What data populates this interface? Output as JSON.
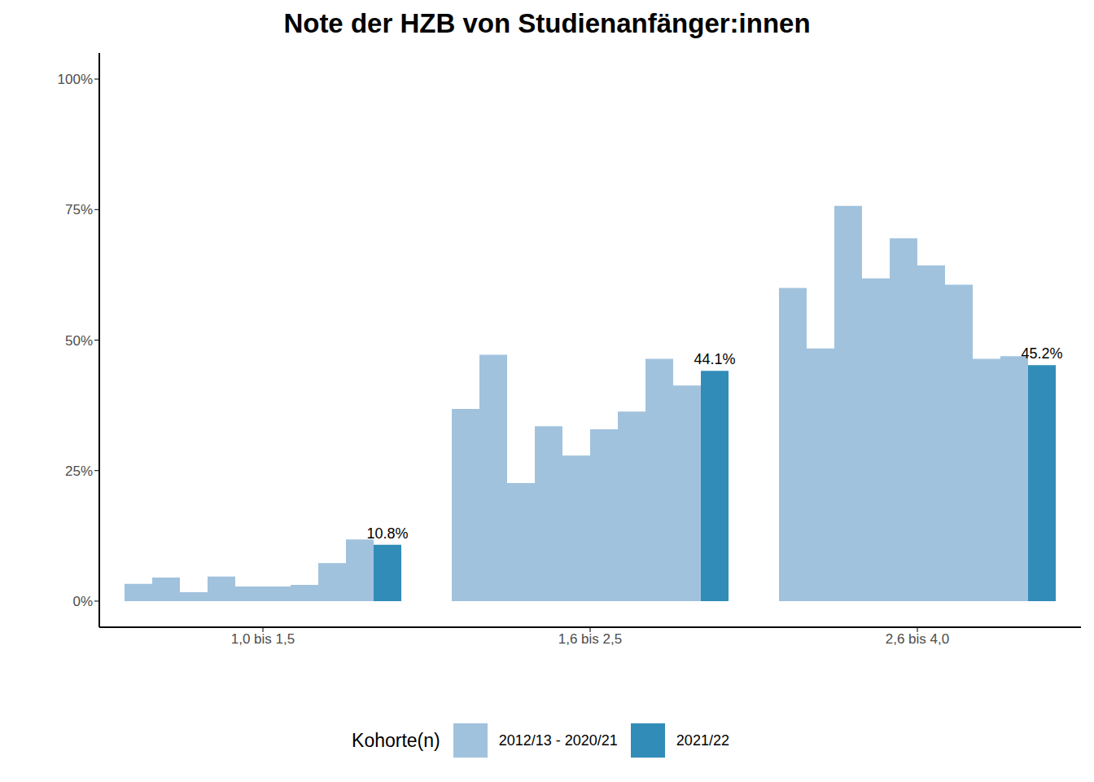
{
  "chart_data": {
    "type": "bar",
    "title": "Note der HZB von Studienanfänger:innen",
    "categories": [
      "1,0 bis 1,5",
      "1,6 bis 2,5",
      "2,6 bis 4,0"
    ],
    "series": [
      {
        "name": "2012/13 - 2020/21",
        "color": "#a1c2dd",
        "values": [
          [
            3.3,
            4.5,
            1.7,
            4.7,
            2.8,
            2.8,
            3.1,
            7.3,
            11.8
          ],
          [
            36.8,
            47.2,
            22.6,
            33.5,
            27.9,
            32.9,
            36.3,
            46.4,
            41.3
          ],
          [
            60.0,
            48.4,
            75.7,
            61.8,
            69.5,
            64.3,
            60.6,
            46.4,
            46.9
          ]
        ]
      },
      {
        "name": "2021/22",
        "color": "#318cb8",
        "values": [
          10.8,
          44.1,
          45.2
        ],
        "value_labels": [
          "10.8%",
          "44.1%",
          "45.2%"
        ],
        "data_labels": true
      }
    ],
    "ylim": [
      -5,
      105
    ],
    "yticks": [
      {
        "value": 0,
        "label": "0%"
      },
      {
        "value": 25,
        "label": "25%"
      },
      {
        "value": 50,
        "label": "50%"
      },
      {
        "value": 75,
        "label": "75%"
      },
      {
        "value": 100,
        "label": "100%"
      }
    ],
    "legend_title": "Kohorte(n)",
    "legend": "bottom",
    "grid": false
  }
}
